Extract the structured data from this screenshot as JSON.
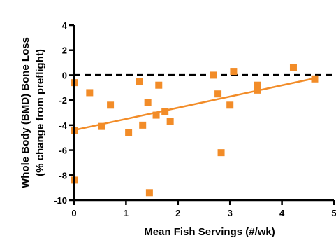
{
  "chart_data": {
    "type": "scatter",
    "title": "",
    "xlabel": "Mean Fish Servings (#/wk)",
    "ylabel_line1": "Whole Body (BMD) Bone Loss",
    "ylabel_line2": "(% change from preflight)",
    "xlim": [
      0,
      5
    ],
    "ylim": [
      -10,
      4
    ],
    "x_ticks": [
      0,
      1,
      2,
      3,
      4,
      5
    ],
    "y_ticks": [
      4,
      2,
      0,
      -2,
      -4,
      -6,
      -8,
      -10
    ],
    "grid": false,
    "legend": "none",
    "marker_color": "#f28c28",
    "trend_color": "#f28c28",
    "zero_line_color": "#000000",
    "points": [
      {
        "x": 0.0,
        "y": -0.6
      },
      {
        "x": 0.0,
        "y": -4.4
      },
      {
        "x": 0.0,
        "y": -8.4
      },
      {
        "x": 0.3,
        "y": -1.4
      },
      {
        "x": 0.53,
        "y": -4.1
      },
      {
        "x": 0.7,
        "y": -2.4
      },
      {
        "x": 1.05,
        "y": -4.6
      },
      {
        "x": 1.25,
        "y": -0.5
      },
      {
        "x": 1.32,
        "y": -4.0
      },
      {
        "x": 1.42,
        "y": -2.2
      },
      {
        "x": 1.45,
        "y": -9.4
      },
      {
        "x": 1.58,
        "y": -3.2
      },
      {
        "x": 1.63,
        "y": -0.8
      },
      {
        "x": 1.75,
        "y": -2.9
      },
      {
        "x": 1.85,
        "y": -3.7
      },
      {
        "x": 2.68,
        "y": 0.0
      },
      {
        "x": 2.77,
        "y": -1.5
      },
      {
        "x": 2.83,
        "y": -6.2
      },
      {
        "x": 3.0,
        "y": -2.4
      },
      {
        "x": 3.07,
        "y": 0.3
      },
      {
        "x": 3.53,
        "y": -0.8
      },
      {
        "x": 3.53,
        "y": -1.2
      },
      {
        "x": 4.22,
        "y": 0.6
      },
      {
        "x": 4.63,
        "y": -0.3
      }
    ],
    "trend_line": {
      "x": [
        0,
        4.63
      ],
      "y": [
        -4.4,
        -0.25
      ]
    },
    "reference_line": {
      "y": 0,
      "x": [
        0,
        5
      ],
      "style": "dashed"
    }
  }
}
